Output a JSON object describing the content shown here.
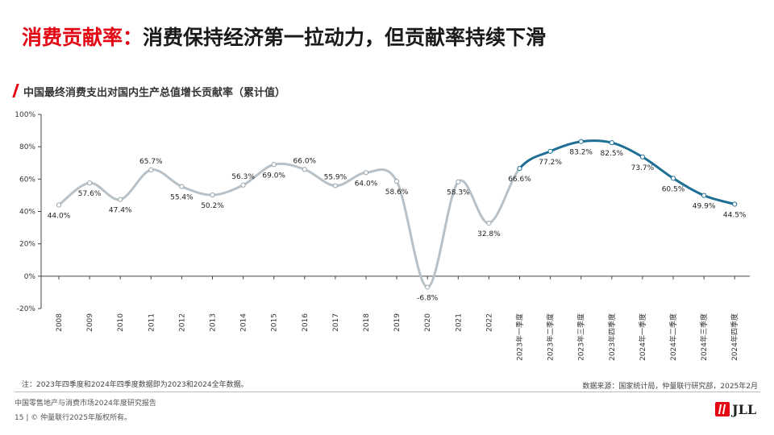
{
  "header": {
    "title_prefix": "消费贡献率：",
    "title_main": "消费保持经济第一拉动力，但贡献率持续下滑",
    "subtitle": "中国最终消费支出对国内生产总值增长贡献率（累计值）"
  },
  "colors": {
    "accent_red": "#e30613",
    "annual_line": "#b8c1c7",
    "quarterly_line": "#1f6f95",
    "axis": "#444444"
  },
  "chart_data": {
    "type": "line",
    "title": "中国最终消费支出对国内生产总值增长贡献率（累计值）",
    "xlabel": "",
    "ylabel": "",
    "ylim": [
      -20,
      100
    ],
    "yticks": [
      "-20%",
      "0%",
      "20%",
      "40%",
      "60%",
      "80%",
      "100%"
    ],
    "y_tick_values": [
      -20,
      0,
      20,
      40,
      60,
      80,
      100
    ],
    "grid": false,
    "legend": "none",
    "categories": [
      "2008",
      "2009",
      "2010",
      "2011",
      "2012",
      "2013",
      "2014",
      "2015",
      "2016",
      "2017",
      "2018",
      "2019",
      "2020",
      "2021",
      "2022",
      "2023年一季度",
      "2023年二季度",
      "2023年三季度",
      "2023年四季度",
      "2024年一季度",
      "2024年二季度",
      "2024年三季度",
      "2024年四季度"
    ],
    "values": [
      44.0,
      57.6,
      47.4,
      65.7,
      55.4,
      50.2,
      56.3,
      69.0,
      66.0,
      55.9,
      64.0,
      58.6,
      -6.8,
      58.3,
      32.8,
      66.6,
      77.2,
      83.2,
      82.5,
      73.7,
      60.5,
      49.9,
      44.5
    ],
    "data_labels": [
      "44.0%",
      "57.6%",
      "47.4%",
      "65.7%",
      "55.4%",
      "50.2%",
      "56.3%",
      "69.0%",
      "66.0%",
      "55.9%",
      "64.0%",
      "58.6%",
      "-6.8%",
      "58.3%",
      "32.8%",
      "66.6%",
      "77.2%",
      "83.2%",
      "82.5%",
      "73.7%",
      "60.5%",
      "49.9%",
      "44.5%"
    ],
    "label_positions": [
      "below",
      "below",
      "below",
      "above",
      "below",
      "below",
      "above",
      "below",
      "above",
      "above",
      "below",
      "below",
      "below",
      "below",
      "below",
      "below",
      "below",
      "below",
      "below",
      "below",
      "below",
      "below",
      "below"
    ],
    "segments": [
      {
        "style": "annual",
        "from": 0,
        "to": 15,
        "color": "#b8c1c7"
      },
      {
        "style": "quarterly",
        "from": 15,
        "to": 22,
        "color": "#1f6f95"
      }
    ]
  },
  "footer": {
    "note": "注：2023年四季度和2024年四季度数据即为2023和2024全年数据。",
    "source": "数据来源：国家统计局，仲量联行研究部，2025年2月",
    "report": "中国零售地产与消费市场2024年度研究报告",
    "page_number": "15",
    "copyright": "| © 仲量联行2025年版权所有。",
    "logo_text": "JLL"
  }
}
